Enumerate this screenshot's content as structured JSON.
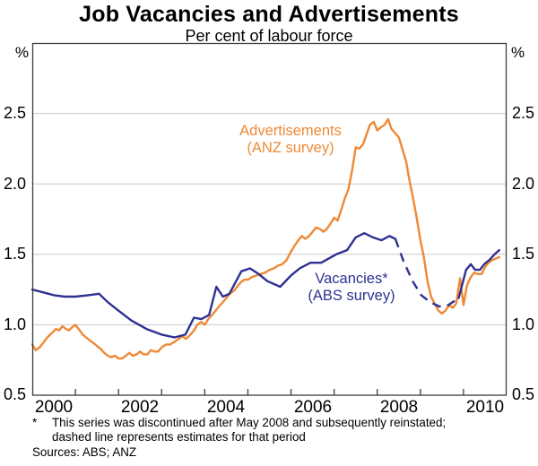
{
  "title": "Job Vacancies and Advertisements",
  "subtitle": "Per cent of labour force",
  "axes": {
    "left_unit": "%",
    "right_unit": "%",
    "y_tick_labels": [
      "2.5",
      "2.0",
      "1.5",
      "1.0",
      "0.5"
    ],
    "x_tick_labels": [
      "2000",
      "2002",
      "2004",
      "2006",
      "2008",
      "2010"
    ]
  },
  "annotations": {
    "advertisements_line1": "Advertisements",
    "advertisements_line2": "(ANZ survey)",
    "vacancies_line1": "Vacancies*",
    "vacancies_line2": "(ABS survey)"
  },
  "footnote": {
    "marker": "*",
    "line1": "This series was discontinued after May 2008 and subsequently reinstated;",
    "line2": "dashed line represents estimates for that period"
  },
  "sources": "Sources: ABS; ANZ",
  "colors": {
    "advertisements_orange": "#EE8935",
    "vacancies_blue": "#2E3192",
    "gridline": "#C9C9C9",
    "frame": "#3C3C3C",
    "text": "#000000"
  },
  "chart_data": {
    "type": "line",
    "title": "Job Vacancies and Advertisements",
    "subtitle": "Per cent of labour force",
    "x_range": [
      2000,
      2011
    ],
    "y_range": [
      0.5,
      3.0
    ],
    "y_gridlines": [
      1.0,
      1.5,
      2.0,
      2.5
    ],
    "y_tick_values": [
      2.5,
      2.0,
      1.5,
      1.0,
      0.5
    ],
    "x_minor_ticks": [
      2001,
      2002,
      2003,
      2004,
      2005,
      2006,
      2007,
      2008,
      2009,
      2010
    ],
    "x_label_years": [
      2000,
      2002,
      2004,
      2006,
      2008,
      2010
    ],
    "unit": "% of labour force",
    "legend_position": "inline-annotations",
    "grid": true,
    "series": [
      {
        "name": "Advertisements (ANZ survey)",
        "color": "advertisements_orange",
        "style": "solid",
        "points": [
          [
            2000.0,
            0.86
          ],
          [
            2000.08,
            0.82
          ],
          [
            2000.17,
            0.84
          ],
          [
            2000.25,
            0.87
          ],
          [
            2000.35,
            0.91
          ],
          [
            2000.45,
            0.94
          ],
          [
            2000.55,
            0.97
          ],
          [
            2000.62,
            0.96
          ],
          [
            2000.7,
            0.99
          ],
          [
            2000.78,
            0.97
          ],
          [
            2000.85,
            0.96
          ],
          [
            2000.95,
            0.99
          ],
          [
            2001.0,
            1.0
          ],
          [
            2001.1,
            0.96
          ],
          [
            2001.17,
            0.93
          ],
          [
            2001.25,
            0.91
          ],
          [
            2001.33,
            0.89
          ],
          [
            2001.42,
            0.87
          ],
          [
            2001.5,
            0.85
          ],
          [
            2001.58,
            0.83
          ],
          [
            2001.67,
            0.8
          ],
          [
            2001.75,
            0.78
          ],
          [
            2001.83,
            0.77
          ],
          [
            2001.92,
            0.78
          ],
          [
            2002.0,
            0.76
          ],
          [
            2002.08,
            0.76
          ],
          [
            2002.17,
            0.78
          ],
          [
            2002.25,
            0.8
          ],
          [
            2002.33,
            0.78
          ],
          [
            2002.42,
            0.79
          ],
          [
            2002.5,
            0.81
          ],
          [
            2002.58,
            0.79
          ],
          [
            2002.67,
            0.79
          ],
          [
            2002.75,
            0.82
          ],
          [
            2002.83,
            0.81
          ],
          [
            2002.92,
            0.81
          ],
          [
            2003.0,
            0.84
          ],
          [
            2003.1,
            0.86
          ],
          [
            2003.2,
            0.86
          ],
          [
            2003.3,
            0.88
          ],
          [
            2003.4,
            0.9
          ],
          [
            2003.48,
            0.92
          ],
          [
            2003.56,
            0.9
          ],
          [
            2003.67,
            0.93
          ],
          [
            2003.75,
            0.96
          ],
          [
            2003.83,
            1.0
          ],
          [
            2003.92,
            1.02
          ],
          [
            2004.0,
            1.0
          ],
          [
            2004.08,
            1.04
          ],
          [
            2004.17,
            1.07
          ],
          [
            2004.25,
            1.1
          ],
          [
            2004.33,
            1.13
          ],
          [
            2004.42,
            1.16
          ],
          [
            2004.5,
            1.19
          ],
          [
            2004.58,
            1.22
          ],
          [
            2004.67,
            1.24
          ],
          [
            2004.75,
            1.27
          ],
          [
            2004.83,
            1.3
          ],
          [
            2004.92,
            1.32
          ],
          [
            2005.0,
            1.32
          ],
          [
            2005.1,
            1.34
          ],
          [
            2005.2,
            1.35
          ],
          [
            2005.3,
            1.36
          ],
          [
            2005.4,
            1.37
          ],
          [
            2005.5,
            1.39
          ],
          [
            2005.6,
            1.4
          ],
          [
            2005.7,
            1.42
          ],
          [
            2005.8,
            1.43
          ],
          [
            2005.9,
            1.46
          ],
          [
            2006.0,
            1.52
          ],
          [
            2006.08,
            1.56
          ],
          [
            2006.17,
            1.6
          ],
          [
            2006.25,
            1.63
          ],
          [
            2006.33,
            1.61
          ],
          [
            2006.42,
            1.63
          ],
          [
            2006.5,
            1.66
          ],
          [
            2006.58,
            1.69
          ],
          [
            2006.67,
            1.68
          ],
          [
            2006.75,
            1.66
          ],
          [
            2006.83,
            1.68
          ],
          [
            2006.92,
            1.72
          ],
          [
            2007.0,
            1.76
          ],
          [
            2007.08,
            1.74
          ],
          [
            2007.17,
            1.82
          ],
          [
            2007.25,
            1.9
          ],
          [
            2007.33,
            1.96
          ],
          [
            2007.42,
            2.1
          ],
          [
            2007.5,
            2.26
          ],
          [
            2007.58,
            2.25
          ],
          [
            2007.67,
            2.28
          ],
          [
            2007.75,
            2.35
          ],
          [
            2007.83,
            2.42
          ],
          [
            2007.92,
            2.44
          ],
          [
            2008.0,
            2.38
          ],
          [
            2008.08,
            2.4
          ],
          [
            2008.17,
            2.42
          ],
          [
            2008.25,
            2.46
          ],
          [
            2008.33,
            2.39
          ],
          [
            2008.42,
            2.36
          ],
          [
            2008.5,
            2.33
          ],
          [
            2008.58,
            2.25
          ],
          [
            2008.67,
            2.16
          ],
          [
            2008.75,
            2.02
          ],
          [
            2008.83,
            1.9
          ],
          [
            2008.92,
            1.75
          ],
          [
            2009.0,
            1.6
          ],
          [
            2009.08,
            1.48
          ],
          [
            2009.17,
            1.3
          ],
          [
            2009.25,
            1.2
          ],
          [
            2009.33,
            1.15
          ],
          [
            2009.42,
            1.1
          ],
          [
            2009.5,
            1.08
          ],
          [
            2009.58,
            1.1
          ],
          [
            2009.67,
            1.14
          ],
          [
            2009.75,
            1.12
          ],
          [
            2009.83,
            1.15
          ],
          [
            2009.92,
            1.33
          ],
          [
            2010.0,
            1.14
          ],
          [
            2010.08,
            1.28
          ],
          [
            2010.17,
            1.34
          ],
          [
            2010.25,
            1.37
          ],
          [
            2010.33,
            1.36
          ],
          [
            2010.42,
            1.36
          ],
          [
            2010.5,
            1.41
          ],
          [
            2010.58,
            1.44
          ],
          [
            2010.67,
            1.46
          ],
          [
            2010.75,
            1.47
          ],
          [
            2010.83,
            1.48
          ]
        ]
      },
      {
        "name": "Vacancies (ABS survey) — solid pre-discontinuation",
        "color": "vacancies_blue",
        "style": "solid",
        "points": [
          [
            2000.0,
            1.25
          ],
          [
            2000.25,
            1.23
          ],
          [
            2000.5,
            1.21
          ],
          [
            2000.75,
            1.2
          ],
          [
            2001.0,
            1.2
          ],
          [
            2001.3,
            1.21
          ],
          [
            2001.55,
            1.22
          ],
          [
            2001.75,
            1.16
          ],
          [
            2002.0,
            1.1
          ],
          [
            2002.3,
            1.03
          ],
          [
            2002.65,
            0.97
          ],
          [
            2003.0,
            0.93
          ],
          [
            2003.3,
            0.91
          ],
          [
            2003.55,
            0.93
          ],
          [
            2003.75,
            1.05
          ],
          [
            2003.92,
            1.04
          ],
          [
            2004.1,
            1.07
          ],
          [
            2004.27,
            1.27
          ],
          [
            2004.42,
            1.2
          ],
          [
            2004.57,
            1.22
          ],
          [
            2004.85,
            1.38
          ],
          [
            2005.05,
            1.4
          ],
          [
            2005.25,
            1.36
          ],
          [
            2005.45,
            1.31
          ],
          [
            2005.75,
            1.27
          ],
          [
            2006.0,
            1.35
          ],
          [
            2006.2,
            1.4
          ],
          [
            2006.45,
            1.44
          ],
          [
            2006.7,
            1.44
          ],
          [
            2007.05,
            1.5
          ],
          [
            2007.3,
            1.53
          ],
          [
            2007.5,
            1.62
          ],
          [
            2007.7,
            1.65
          ],
          [
            2007.9,
            1.62
          ],
          [
            2008.1,
            1.6
          ],
          [
            2008.28,
            1.63
          ],
          [
            2008.42,
            1.61
          ]
        ]
      },
      {
        "name": "Vacancies (ABS survey) — dashed estimates May 2008 to late 2009",
        "color": "vacancies_blue",
        "style": "dashed",
        "points": [
          [
            2008.42,
            1.61
          ],
          [
            2008.61,
            1.45
          ],
          [
            2008.82,
            1.31
          ],
          [
            2009.02,
            1.21
          ],
          [
            2009.23,
            1.16
          ],
          [
            2009.44,
            1.13
          ],
          [
            2009.65,
            1.14
          ],
          [
            2009.89,
            1.19
          ]
        ]
      },
      {
        "name": "Vacancies (ABS survey) — solid reinstated",
        "color": "vacancies_blue",
        "style": "solid",
        "points": [
          [
            2009.89,
            1.19
          ],
          [
            2010.06,
            1.39
          ],
          [
            2010.17,
            1.43
          ],
          [
            2010.27,
            1.39
          ],
          [
            2010.38,
            1.39
          ],
          [
            2010.48,
            1.43
          ],
          [
            2010.6,
            1.46
          ],
          [
            2010.72,
            1.5
          ],
          [
            2010.83,
            1.53
          ]
        ]
      }
    ]
  }
}
